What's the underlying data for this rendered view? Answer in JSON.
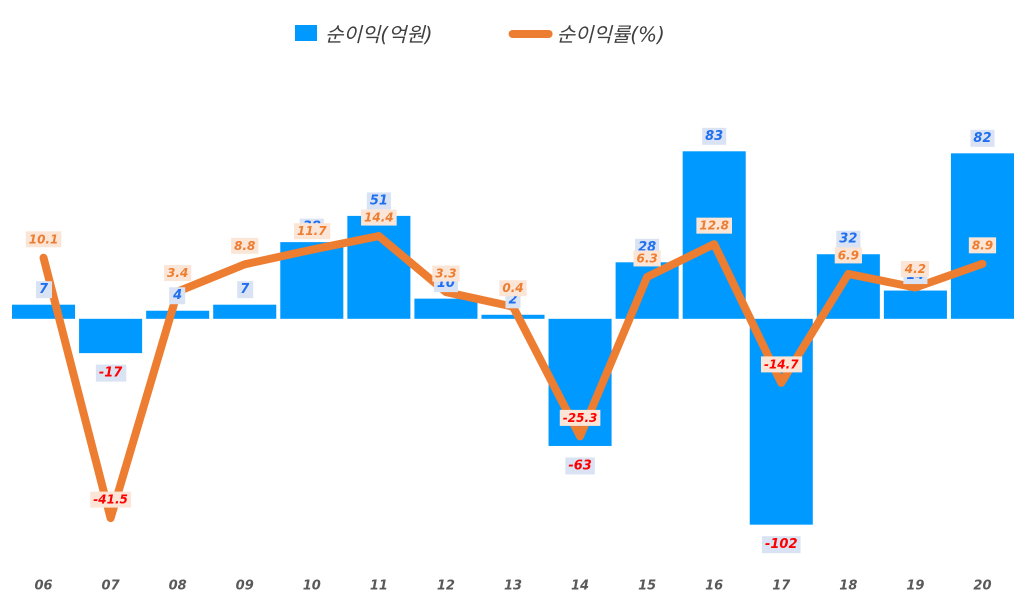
{
  "chart_data": {
    "type": "bar-line",
    "categories": [
      "06",
      "07",
      "08",
      "09",
      "10",
      "11",
      "12",
      "13",
      "14",
      "15",
      "16",
      "17",
      "18",
      "19",
      "20"
    ],
    "series": [
      {
        "name": "순이익(억원)",
        "type": "bar",
        "color": "#0099ff",
        "values": [
          7,
          -17,
          4,
          7,
          38,
          51,
          10,
          2,
          -63,
          28,
          83,
          -102,
          32,
          14,
          82
        ]
      },
      {
        "name": "순이익률(%)",
        "type": "line",
        "axis": "y2",
        "color": "#ed7d31",
        "values": [
          10.1,
          -41.5,
          3.4,
          8.8,
          11.7,
          14.4,
          3.3,
          0.4,
          -25.3,
          6.3,
          12.8,
          -14.7,
          6.9,
          4.2,
          8.9
        ]
      }
    ],
    "ylim": [
      -120,
      100
    ],
    "y2lim": [
      -50,
      38
    ],
    "legend": "top",
    "grid": false
  }
}
